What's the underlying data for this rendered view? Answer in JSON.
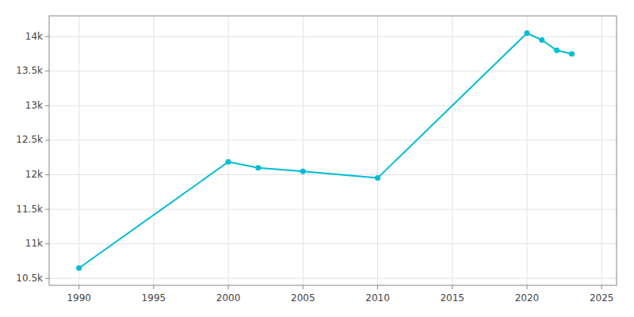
{
  "chart_data": {
    "type": "line",
    "x": [
      1990,
      2000,
      2002,
      2005,
      2010,
      2020,
      2021,
      2022,
      2023
    ],
    "values": [
      10650,
      12186,
      12100,
      12050,
      11953,
      14050,
      13950,
      13800,
      13750
    ],
    "color": "#00bcd4",
    "marker": "circle",
    "xlim": [
      1988,
      2026
    ],
    "ylim": [
      10400,
      14300
    ],
    "xticks": [
      1990,
      1995,
      2000,
      2005,
      2010,
      2015,
      2020,
      2025
    ],
    "yticks": [
      {
        "value": 10500,
        "label": "10.5k"
      },
      {
        "value": 11000,
        "label": "11k"
      },
      {
        "value": 11500,
        "label": "11.5k"
      },
      {
        "value": 12000,
        "label": "12k"
      },
      {
        "value": 12500,
        "label": "12.5k"
      },
      {
        "value": 13000,
        "label": "13k"
      },
      {
        "value": 13500,
        "label": "13.5k"
      },
      {
        "value": 14000,
        "label": "14k"
      }
    ],
    "grid": true
  }
}
